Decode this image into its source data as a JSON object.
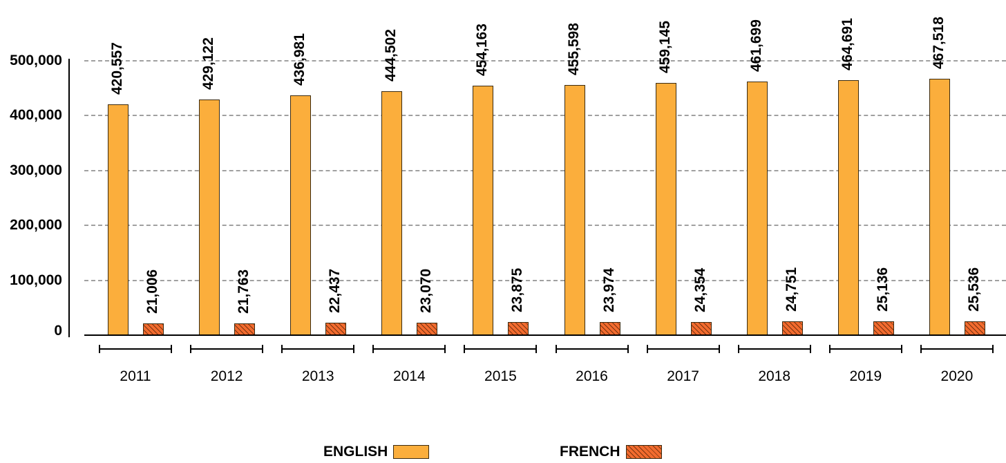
{
  "chart_data": {
    "type": "bar",
    "title": "",
    "xlabel": "",
    "ylabel": "",
    "ylim": [
      0,
      500000
    ],
    "yticks": [
      0,
      100000,
      200000,
      300000,
      400000,
      500000
    ],
    "ytick_labels": [
      "0",
      "100,000",
      "200,000",
      "300,000",
      "400,000",
      "500,000"
    ],
    "grid": true,
    "legend_position": "bottom",
    "categories": [
      "2011",
      "2012",
      "2013",
      "2014",
      "2015",
      "2016",
      "2017",
      "2018",
      "2019",
      "2020"
    ],
    "series": [
      {
        "name": "ENGLISH",
        "color": "#FBAE3C",
        "pattern": "solid",
        "values": [
          420557,
          429122,
          436981,
          444502,
          454163,
          455598,
          459145,
          461699,
          464691,
          467518
        ],
        "labels": [
          "420,557",
          "429,122",
          "436,981",
          "444,502",
          "454,163",
          "455,598",
          "459,145",
          "461,699",
          "464,691",
          "467,518"
        ]
      },
      {
        "name": "FRENCH",
        "color": "#F26B2E",
        "pattern": "diagonal-hatch",
        "values": [
          21006,
          21763,
          22437,
          23070,
          23875,
          23974,
          24354,
          24751,
          25136,
          25536
        ],
        "labels": [
          "21,006",
          "21,763",
          "22,437",
          "23,070",
          "23,875",
          "23,974",
          "24,354",
          "24,751",
          "25,136",
          "25,536"
        ]
      }
    ]
  },
  "legend": {
    "items": [
      {
        "label": "ENGLISH",
        "swatch": "solid-orange"
      },
      {
        "label": "FRENCH",
        "swatch": "hatched-red-orange"
      }
    ]
  }
}
